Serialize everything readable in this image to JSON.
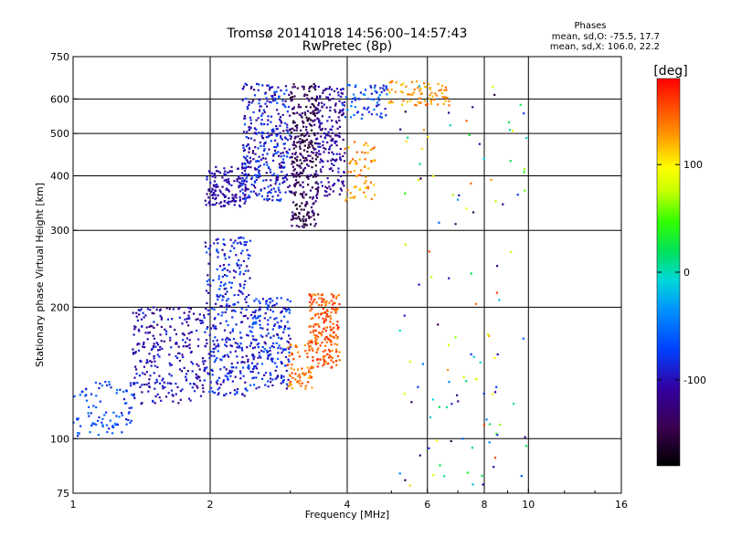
{
  "chart_data": {
    "type": "scatter",
    "title": "Tromsø 20141018 14:56:00–14:57:43",
    "subtitle": "RwPretec (8p)",
    "phases": {
      "heading": "Phases",
      "line_o": "mean, sd,O: -75.5, 17.7",
      "line_x": "mean, sd,X: 106.0, 22.2"
    },
    "xlabel": "Frequency [MHz]",
    "ylabel": "Stationary phase Virtual Height [km]",
    "x_scale": "log",
    "y_scale": "log",
    "xlim": [
      1,
      16
    ],
    "ylim": [
      75,
      750
    ],
    "x_ticks": [
      1,
      2,
      4,
      6,
      8,
      10,
      16
    ],
    "x_tick_labels": [
      "1",
      "2",
      "4",
      "6",
      "8",
      "10",
      "16"
    ],
    "y_ticks": [
      75,
      100,
      200,
      300,
      400,
      500,
      600,
      750
    ],
    "y_tick_labels": [
      "75",
      "100",
      "200",
      "300",
      "400",
      "500",
      "600",
      "750"
    ],
    "grid": true,
    "colorbar": {
      "label": "[deg]",
      "range": [
        -180,
        180
      ],
      "ticks": [
        100,
        0,
        -100
      ],
      "tick_labels": [
        "100",
        "0",
        "-100"
      ]
    },
    "clusters": [
      {
        "f": [
          1.0,
          1.35
        ],
        "h": [
          100,
          135
        ],
        "phase": [
          -95,
          -45
        ],
        "n": 90
      },
      {
        "f": [
          1.35,
          1.95
        ],
        "h": [
          120,
          200
        ],
        "phase": [
          -125,
          -80
        ],
        "n": 280
      },
      {
        "f": [
          1.95,
          2.45
        ],
        "h": [
          125,
          290
        ],
        "phase": [
          -115,
          -60
        ],
        "n": 320
      },
      {
        "f": [
          2.45,
          3.0
        ],
        "h": [
          130,
          210
        ],
        "phase": [
          -110,
          -55
        ],
        "n": 220
      },
      {
        "f": [
          2.95,
          3.35
        ],
        "h": [
          130,
          165
        ],
        "phase": [
          120,
          160
        ],
        "n": 70
      },
      {
        "f": [
          3.3,
          3.85
        ],
        "h": [
          145,
          215
        ],
        "phase": [
          130,
          170
        ],
        "n": 200
      },
      {
        "f": [
          1.95,
          2.4
        ],
        "h": [
          340,
          420
        ],
        "phase": [
          -120,
          -90
        ],
        "n": 150
      },
      {
        "f": [
          2.35,
          3.0
        ],
        "h": [
          350,
          650
        ],
        "phase": [
          -125,
          -60
        ],
        "n": 360
      },
      {
        "f": [
          3.0,
          3.45
        ],
        "h": [
          305,
          650
        ],
        "phase": [
          -170,
          -115
        ],
        "n": 330
      },
      {
        "f": [
          3.4,
          3.95
        ],
        "h": [
          360,
          650
        ],
        "phase": [
          -130,
          -90
        ],
        "n": 200
      },
      {
        "f": [
          3.95,
          4.6
        ],
        "h": [
          350,
          480
        ],
        "phase": [
          105,
          150
        ],
        "n": 60
      },
      {
        "f": [
          3.9,
          4.9
        ],
        "h": [
          540,
          650
        ],
        "phase": [
          -100,
          -40
        ],
        "n": 70
      },
      {
        "f": [
          4.9,
          6.7
        ],
        "h": [
          580,
          660
        ],
        "phase": [
          110,
          150
        ],
        "n": 80
      },
      {
        "f": [
          5.2,
          10.0
        ],
        "h": [
          75,
          650
        ],
        "phase": [
          -160,
          160
        ],
        "n": 120
      }
    ]
  }
}
